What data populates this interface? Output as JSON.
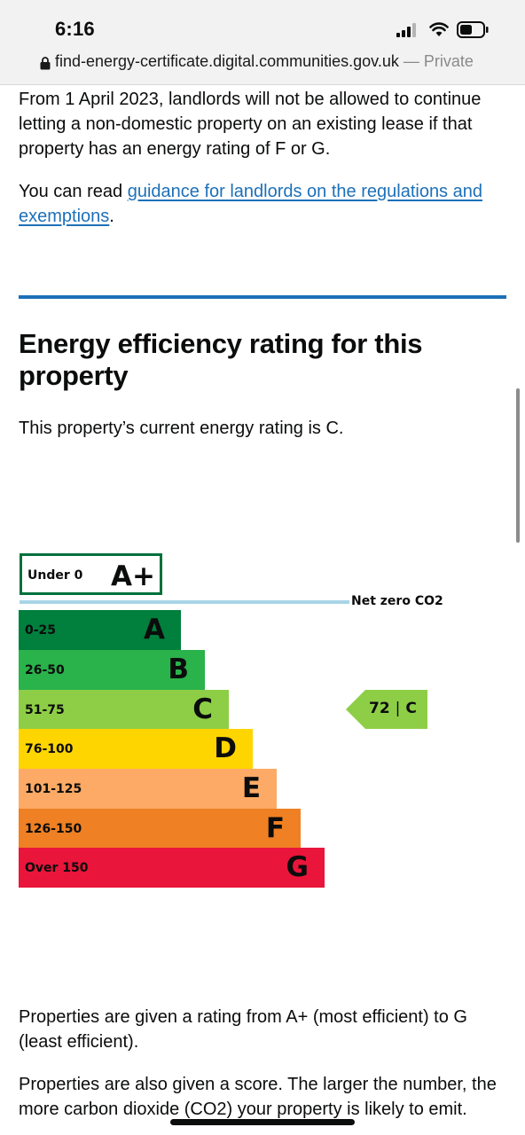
{
  "status_bar": {
    "time": "6:16"
  },
  "browser": {
    "domain": "find-energy-certificate.digital.communities.gov.uk",
    "private_label": "— Private"
  },
  "content": {
    "para_regulation": "From 1 April 2023, landlords will not be allowed to continue letting a non-domestic property on an existing lease if that property has an energy rating of F or G.",
    "guidance_prefix": "You can read ",
    "guidance_link": "guidance for landlords on the regulations and exemptions",
    "guidance_suffix": ".",
    "heading": "Energy efficiency rating for this property",
    "current_rating_text": "This property’s current energy rating is C.",
    "para_ratings": "Properties are given a rating from A+ (most efficient) to G (least efficient).",
    "para_score": "Properties are also given a score. The larger the number, the more carbon dioxide (CO2) your property is likely to emit."
  },
  "rating_chart": {
    "aplus": {
      "range": "Under 0",
      "letter": "A+",
      "color": "#00703c"
    },
    "net_zero_label": "Net zero CO2",
    "bands": [
      {
        "range": "0-25",
        "letter": "A",
        "color": "#007f3d"
      },
      {
        "range": "26-50",
        "letter": "B",
        "color": "#2ab24b"
      },
      {
        "range": "51-75",
        "letter": "C",
        "color": "#8dce46"
      },
      {
        "range": "76-100",
        "letter": "D",
        "color": "#ffd500"
      },
      {
        "range": "101-125",
        "letter": "E",
        "color": "#fcaa65"
      },
      {
        "range": "126-150",
        "letter": "F",
        "color": "#ef8023"
      },
      {
        "range": "Over 150",
        "letter": "G",
        "color": "#e9153b"
      }
    ],
    "current": {
      "score": "72",
      "separator": "|",
      "letter": "C",
      "band_index": 2,
      "color": "#8dce46"
    }
  }
}
